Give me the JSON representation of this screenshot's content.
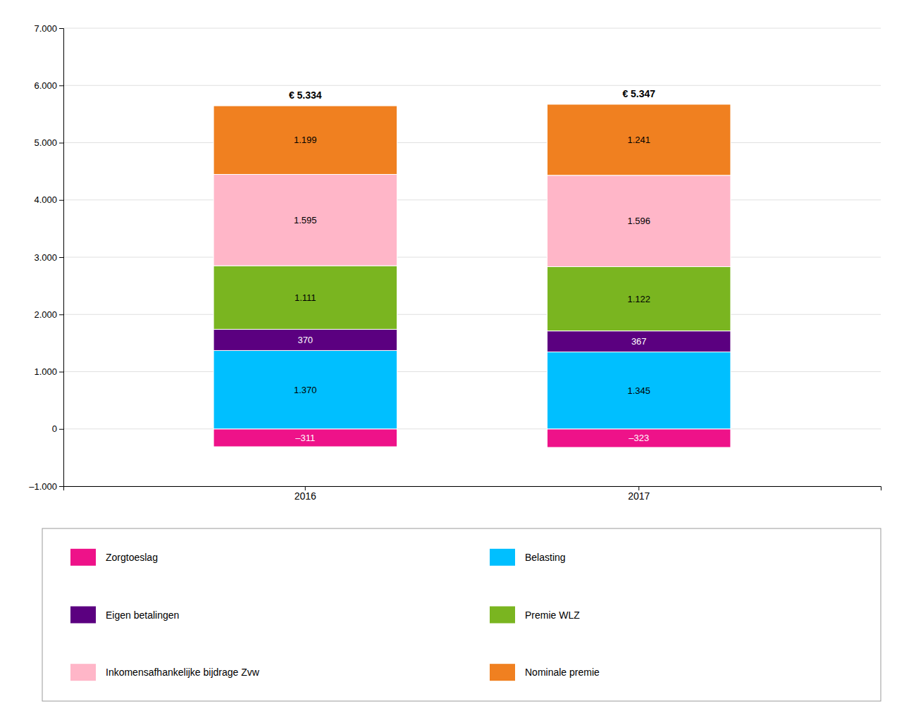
{
  "chart_data": {
    "type": "bar",
    "stacked": true,
    "categories": [
      "2016",
      "2017"
    ],
    "series": [
      {
        "name": "Zorgtoeslag",
        "color": "#EE1289",
        "values": [
          -311,
          -323
        ],
        "value_labels": [
          "–311",
          "–323"
        ]
      },
      {
        "name": "Belasting",
        "color": "#00BFFF",
        "values": [
          1370,
          1345
        ],
        "value_labels": [
          "1.370",
          "1.345"
        ]
      },
      {
        "name": "Eigen betalingen",
        "color": "#5B0080",
        "values": [
          370,
          367
        ],
        "value_labels": [
          "370",
          "367"
        ]
      },
      {
        "name": "Premie WLZ",
        "color": "#7AB520",
        "values": [
          1111,
          1122
        ],
        "value_labels": [
          "1.111",
          "1.122"
        ]
      },
      {
        "name": "Inkomensafhankelijke bijdrage Zvw",
        "color": "#FFB6C8",
        "values": [
          1595,
          1596
        ],
        "value_labels": [
          "1.595",
          "1.596"
        ]
      },
      {
        "name": "Nominale premie",
        "color": "#F08020",
        "values": [
          1199,
          1241
        ],
        "value_labels": [
          "1.199",
          "1.241"
        ]
      }
    ],
    "annotations": [
      "€ 5.334",
      "€ 5.347"
    ],
    "ylim": [
      -1000,
      7000
    ],
    "yticks": [
      {
        "value": -1000,
        "label": "–1.000"
      },
      0,
      {
        "value": 1000,
        "label": "1.000"
      },
      {
        "value": 2000,
        "label": "2.000"
      },
      {
        "value": 3000,
        "label": "3.000"
      },
      {
        "value": 4000,
        "label": "4.000"
      },
      {
        "value": 5000,
        "label": "5.000"
      },
      {
        "value": 6000,
        "label": "6.000"
      },
      {
        "value": 7000,
        "label": "7.000"
      }
    ],
    "grid": true,
    "data_labels": true,
    "legend": "bottom"
  }
}
